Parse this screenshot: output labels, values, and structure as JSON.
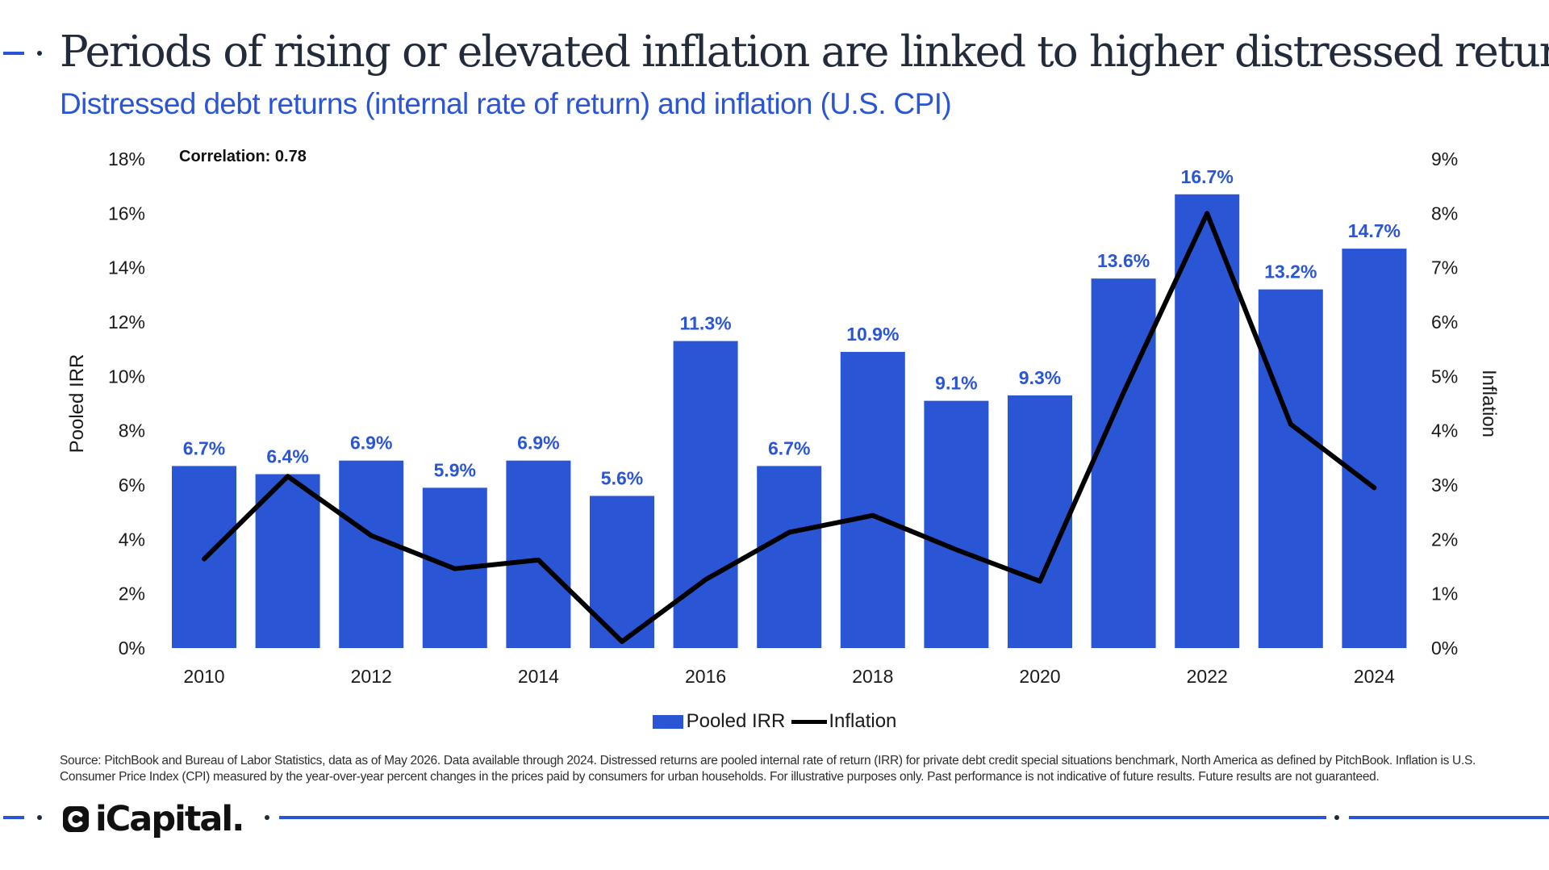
{
  "header": {
    "title": "Periods of rising or elevated inflation are linked to higher distressed returns",
    "subtitle": "Distressed debt returns (internal rate of return) and inflation (U.S. CPI)"
  },
  "chart_data": {
    "type": "bar",
    "annotation": "Correlation: 0.78",
    "x": [
      2010,
      2011,
      2012,
      2013,
      2014,
      2015,
      2016,
      2017,
      2018,
      2019,
      2020,
      2021,
      2022,
      2023,
      2024
    ],
    "x_tick_labels": [
      "2010",
      "2012",
      "2014",
      "2016",
      "2018",
      "2020",
      "2022",
      "2024"
    ],
    "series": [
      {
        "name": "Pooled IRR",
        "type": "bar",
        "axis": "left",
        "values": [
          6.7,
          6.4,
          6.9,
          5.9,
          6.9,
          5.6,
          11.3,
          6.7,
          10.9,
          9.1,
          9.3,
          13.6,
          16.7,
          13.2,
          14.7
        ],
        "labels": [
          "6.7%",
          "6.4%",
          "6.9%",
          "5.9%",
          "6.9%",
          "5.6%",
          "11.3%",
          "6.7%",
          "10.9%",
          "9.1%",
          "9.3%",
          "13.6%",
          "16.7%",
          "13.2%",
          "14.7%"
        ]
      },
      {
        "name": "Inflation",
        "type": "line",
        "axis": "right",
        "values": [
          1.64,
          3.16,
          2.07,
          1.46,
          1.62,
          0.12,
          1.26,
          2.13,
          2.44,
          1.81,
          1.23,
          4.7,
          8.0,
          4.12,
          2.95
        ]
      }
    ],
    "y_left": {
      "label": "Pooled IRR",
      "range": [
        0,
        18
      ],
      "ticks": [
        "0%",
        "2%",
        "4%",
        "6%",
        "8%",
        "10%",
        "12%",
        "14%",
        "16%",
        "18%"
      ]
    },
    "y_right": {
      "label": "Inflation",
      "range": [
        0,
        9
      ],
      "ticks": [
        "0%",
        "1%",
        "2%",
        "3%",
        "4%",
        "5%",
        "6%",
        "7%",
        "8%",
        "9%"
      ]
    },
    "grid": false,
    "legend": "bottom-center",
    "colors": {
      "bar": "#2a56d6",
      "line": "#000000",
      "label": "#2a56d6"
    }
  },
  "legend": {
    "items": [
      "Pooled IRR",
      "Inflation"
    ]
  },
  "footer": {
    "source": "Source: PitchBook and Bureau of Labor Statistics, data as of May 2026. Data available through 2024. Distressed returns are pooled internal rate of return (IRR) for private debt credit special situations benchmark, North America as defined by PitchBook. Inflation is U.S. Consumer Price Index (CPI) measured by the year-over-year percent changes in the prices paid by consumers for urban households. For illustrative purposes only. Past performance is not indicative of future results. Future results are not guaranteed.",
    "logo_text": "iCapital."
  }
}
